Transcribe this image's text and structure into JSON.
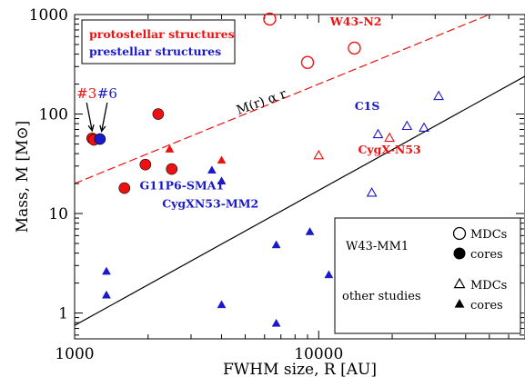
{
  "chart_data": {
    "type": "scatter",
    "xlabel": "FWHM size, R [AU]",
    "ylabel": "Mass, M [M⊙]",
    "x_scale": "log",
    "y_scale": "log",
    "xlim": [
      1000,
      70000
    ],
    "ylim": [
      0.55,
      1000
    ],
    "x_ticks": [
      {
        "value": 1000,
        "label": "1000"
      },
      {
        "value": 10000,
        "label": "10000"
      }
    ],
    "y_ticks": [
      {
        "value": 1,
        "label": "1"
      },
      {
        "value": 10,
        "label": "10"
      },
      {
        "value": 100,
        "label": "100"
      },
      {
        "value": 1000,
        "label": "1000"
      }
    ],
    "colors": {
      "protostellar": "#ee1111",
      "prestellar": "#1a1acc",
      "neutral": "#000000"
    },
    "category_legend": [
      {
        "label": "protostellar structures",
        "color": "#ee1111"
      },
      {
        "label": "prestellar structures",
        "color": "#1a1acc"
      }
    ],
    "marker_legend": {
      "group1": "W43-MM1",
      "group2": "other studies",
      "labels": [
        "MDCs",
        "cores",
        "MDCs",
        "cores"
      ]
    },
    "lines": [
      {
        "label": "M(r) α r",
        "style": "dashed",
        "color": "#ee1111",
        "points": [
          [
            1000,
            20
          ],
          [
            50000,
            1000
          ]
        ]
      },
      {
        "style": "solid",
        "color": "#000000",
        "points": [
          [
            1000,
            0.75
          ],
          [
            70000,
            240
          ]
        ]
      }
    ],
    "series": [
      {
        "marker": "open-circle",
        "color": "#ee1111",
        "points": [
          [
            6300,
            900
          ],
          [
            9000,
            330
          ],
          [
            14000,
            460
          ]
        ]
      },
      {
        "marker": "filled-circle",
        "color": "#ee1111",
        "points": [
          [
            1180,
            57
          ],
          [
            1200,
            55
          ],
          [
            1600,
            18
          ],
          [
            1950,
            31
          ],
          [
            2200,
            100
          ],
          [
            2500,
            28
          ]
        ]
      },
      {
        "marker": "filled-circle",
        "color": "#1a1acc",
        "points": [
          [
            1270,
            56
          ]
        ]
      },
      {
        "marker": "open-triangle",
        "color": "#ee1111",
        "points": [
          [
            10000,
            38
          ],
          [
            19500,
            57
          ]
        ]
      },
      {
        "marker": "open-triangle",
        "color": "#1a1acc",
        "points": [
          [
            16500,
            16
          ],
          [
            17500,
            62
          ],
          [
            23000,
            75
          ],
          [
            27000,
            72
          ],
          [
            31000,
            150
          ]
        ]
      },
      {
        "marker": "filled-triangle",
        "color": "#ee1111",
        "points": [
          [
            2450,
            44
          ],
          [
            4000,
            34
          ]
        ]
      },
      {
        "marker": "filled-triangle",
        "color": "#1a1acc",
        "points": [
          [
            3650,
            27
          ],
          [
            4000,
            21
          ],
          [
            1350,
            2.6
          ],
          [
            1350,
            1.5
          ],
          [
            4000,
            1.2
          ],
          [
            6700,
            4.8
          ],
          [
            6700,
            0.78
          ],
          [
            9200,
            6.5
          ],
          [
            11000,
            2.4
          ]
        ]
      }
    ],
    "annotations": [
      {
        "text": "W43-N2",
        "color": "#ee1111",
        "x": 14200,
        "y": 780
      },
      {
        "text": "#3",
        "color": "#ee1111",
        "x": 1120,
        "y": 145
      },
      {
        "text": "#6",
        "color": "#1a1acc",
        "x": 1360,
        "y": 145
      },
      {
        "text": "M(r) α r",
        "color": "#000000",
        "x": 5900,
        "y": 121,
        "rotate": -20
      },
      {
        "text": "C1S",
        "color": "#1a1acc",
        "x": 15800,
        "y": 110
      },
      {
        "text": "CygX-N53",
        "color": "#ee1111",
        "x": 19500,
        "y": 40
      },
      {
        "text": "G11P6-SMA1",
        "color": "#1a1acc",
        "x": 2750,
        "y": 17.5
      },
      {
        "text": "CygXN53-MM2",
        "color": "#1a1acc",
        "x": 3600,
        "y": 11.5
      }
    ]
  }
}
